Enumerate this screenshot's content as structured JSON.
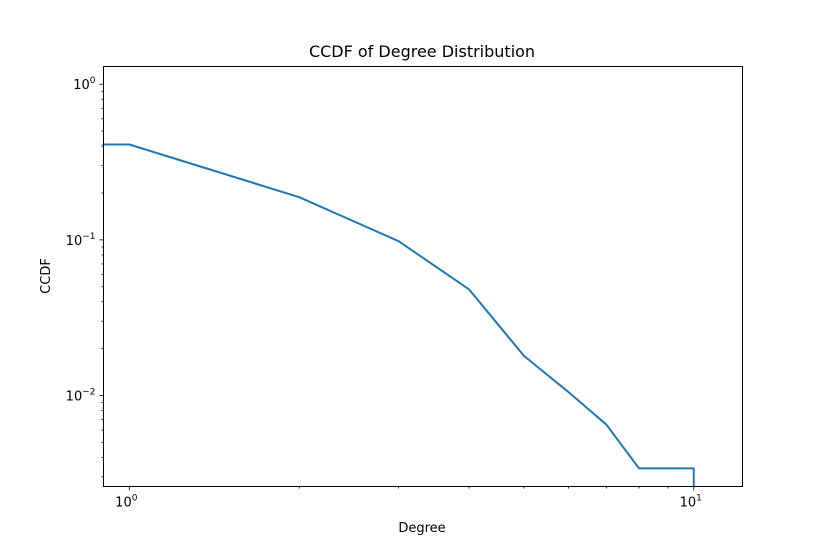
{
  "chart_data": {
    "type": "line",
    "title": "CCDF of Degree Distribution",
    "xlabel": "Degree",
    "ylabel": "CCDF",
    "xscale": "log",
    "yscale": "log",
    "xlim": [
      0.9,
      12.2
    ],
    "ylim": [
      0.0026,
      1.3
    ],
    "grid": false,
    "legend": "none",
    "x_ticks": [
      {
        "value": 1,
        "base": "10",
        "exp": "0"
      },
      {
        "value": 10,
        "base": "10",
        "exp": "1"
      }
    ],
    "y_ticks": [
      {
        "value": 1,
        "base": "10",
        "exp": "0"
      },
      {
        "value": 0.1,
        "base": "10",
        "exp": "−1"
      },
      {
        "value": 0.01,
        "base": "10",
        "exp": "−2"
      }
    ],
    "series": [
      {
        "color": "#1f77b4",
        "x": [
          0.9,
          1,
          2,
          3,
          4,
          5,
          6,
          7,
          8,
          9,
          10,
          10
        ],
        "y": [
          0.41,
          0.41,
          0.188,
          0.098,
          0.048,
          0.018,
          0.0105,
          0.0065,
          0.0034,
          0.0034,
          0.0034,
          0.0026
        ]
      }
    ]
  }
}
